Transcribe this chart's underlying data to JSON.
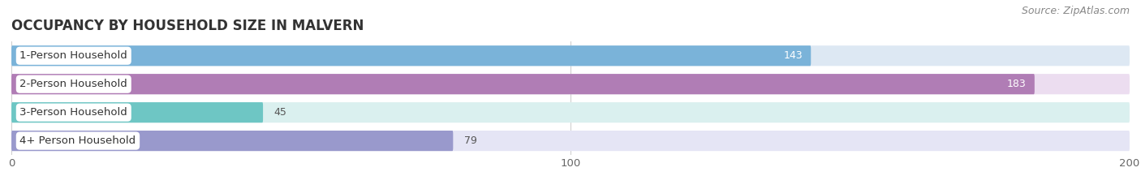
{
  "title": "OCCUPANCY BY HOUSEHOLD SIZE IN MALVERN",
  "source": "Source: ZipAtlas.com",
  "categories": [
    "1-Person Household",
    "2-Person Household",
    "3-Person Household",
    "4+ Person Household"
  ],
  "values": [
    143,
    183,
    45,
    79
  ],
  "bar_colors": [
    "#7ab3d9",
    "#b07db5",
    "#6ec6c4",
    "#9999cc"
  ],
  "bar_bg_colors": [
    "#dde8f3",
    "#ecddf0",
    "#daf0ef",
    "#e5e5f5"
  ],
  "xlim": [
    0,
    200
  ],
  "xticks": [
    0,
    100,
    200
  ],
  "title_fontsize": 12,
  "label_fontsize": 9.5,
  "value_fontsize": 9,
  "source_fontsize": 9,
  "bg_color": "#ffffff",
  "bar_height": 0.72,
  "bar_gap": 0.12
}
